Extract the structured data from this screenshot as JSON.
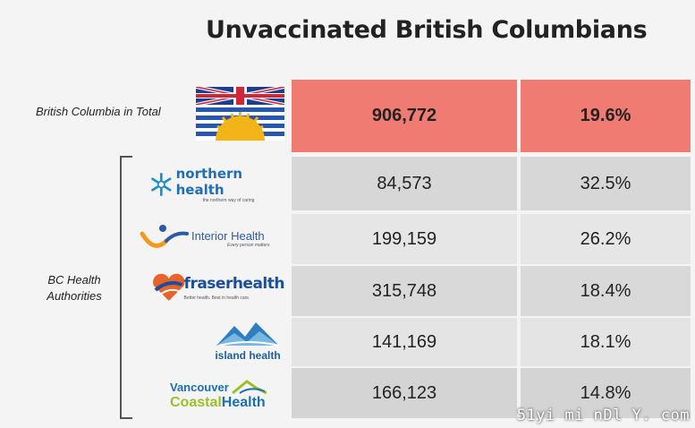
{
  "title": "Unvaccinated British Columbians",
  "total": {
    "label": "British Columbia in Total",
    "count": "906,772",
    "percent": "19.6%"
  },
  "group_label": "BC Health Authorities",
  "rows": [
    {
      "logo": "northern health",
      "logo_tagline": "the northern way of caring",
      "count": "84,573",
      "percent": "32.5%"
    },
    {
      "logo": "Interior Health",
      "logo_tagline": "Every person matters",
      "count": "199,159",
      "percent": "26.2%"
    },
    {
      "logo": "fraserhealth",
      "logo_tagline": "Better health. Best in health care.",
      "count": "315,748",
      "percent": "18.4%"
    },
    {
      "logo": "island health",
      "count": "141,169",
      "percent": "18.1%"
    },
    {
      "logo_line1": "Vancouver",
      "logo_line2a": "Coastal",
      "logo_line2b": "Health",
      "count": "166,123",
      "percent": "14.8%"
    }
  ],
  "watermark": "51yi mi nDl Y. com",
  "colors": {
    "total_bg": "#f07b72",
    "northern": "#1f6fb2",
    "interior": "#2a5aa8",
    "fraser": "#1b4f9c",
    "island": "#2f7fc0",
    "vch_blue": "#1d6fb0",
    "vch_green": "#9bbf2a"
  }
}
